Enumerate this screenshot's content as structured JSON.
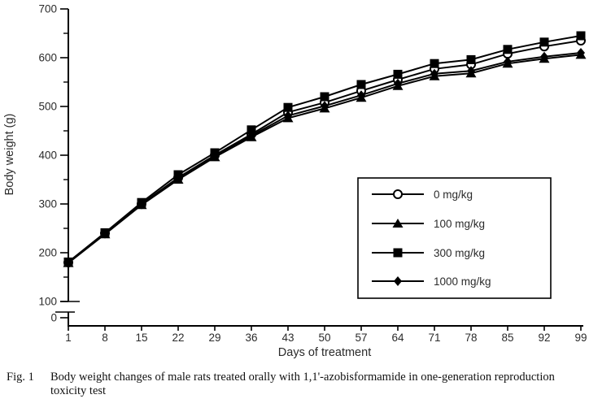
{
  "figure": {
    "caption_label": "Fig. 1",
    "caption_text": "Body weight changes of male rats treated orally with 1,1'-azobisformamide in one-generation reproduction toxicity test"
  },
  "chart_data": {
    "type": "line",
    "title": "",
    "xlabel": "Days of treatment",
    "ylabel": "Body weight (g)",
    "x": [
      1,
      8,
      15,
      22,
      29,
      36,
      43,
      50,
      57,
      64,
      71,
      78,
      85,
      92,
      99
    ],
    "xlim": [
      1,
      99
    ],
    "ylim": [
      0,
      700
    ],
    "y_major_ticks": [
      0,
      100,
      200,
      300,
      400,
      500,
      600,
      700
    ],
    "y_minor_ticks": [
      150,
      250,
      350,
      450,
      550,
      650
    ],
    "y_axis_break_between": [
      0,
      100
    ],
    "grid": false,
    "legend_position": "inside-right",
    "series": [
      {
        "name": "0 mg/kg",
        "marker": "circle-open",
        "color": "#000000",
        "values": [
          180,
          240,
          300,
          354,
          400,
          443,
          488,
          508,
          532,
          555,
          577,
          586,
          608,
          623,
          635
        ]
      },
      {
        "name": "100 mg/kg",
        "marker": "triangle-filled",
        "color": "#000000",
        "values": [
          179,
          238,
          298,
          350,
          396,
          437,
          476,
          496,
          518,
          542,
          562,
          568,
          588,
          598,
          606
        ]
      },
      {
        "name": "300 mg/kg",
        "marker": "square-filled",
        "color": "#000000",
        "values": [
          181,
          241,
          303,
          360,
          405,
          452,
          498,
          520,
          545,
          566,
          588,
          596,
          617,
          632,
          645
        ]
      },
      {
        "name": "1000 mg/kg",
        "marker": "diamond-filled",
        "color": "#000000",
        "values": [
          180,
          239,
          299,
          352,
          398,
          440,
          481,
          501,
          523,
          547,
          567,
          573,
          592,
          602,
          610
        ]
      }
    ],
    "colors": {
      "line": "#000000",
      "background": "#ffffff"
    }
  }
}
